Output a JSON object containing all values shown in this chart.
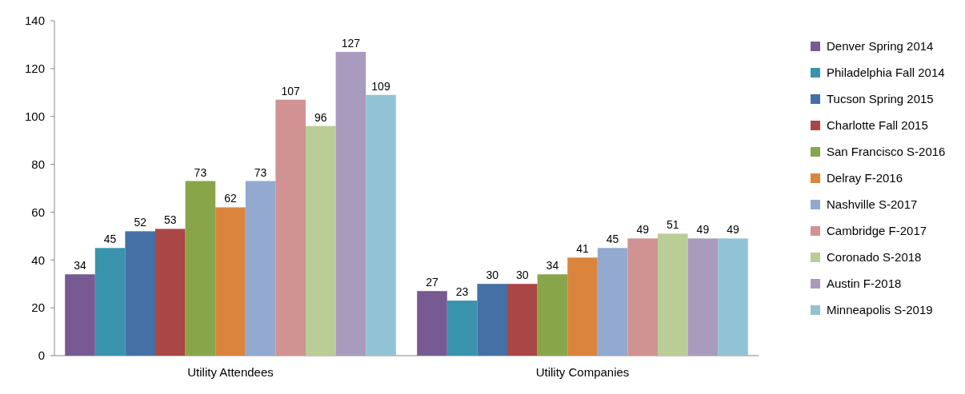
{
  "chart_data": {
    "type": "bar",
    "categories": [
      "Utility Attendees",
      "Utility Companies"
    ],
    "ylim": [
      0,
      140
    ],
    "yticks": [
      0,
      20,
      40,
      60,
      80,
      100,
      120,
      140
    ],
    "data_labels": true,
    "legend": "right",
    "grid": false,
    "series": [
      {
        "name": "Denver Spring 2014",
        "color": "#775a92",
        "values": [
          34,
          27
        ]
      },
      {
        "name": "Philadelphia Fall 2014",
        "color": "#3a93ad",
        "values": [
          45,
          23
        ]
      },
      {
        "name": "Tucson Spring 2015",
        "color": "#4470a6",
        "values": [
          52,
          30
        ]
      },
      {
        "name": "Charlotte Fall 2015",
        "color": "#aa4644",
        "values": [
          53,
          30
        ]
      },
      {
        "name": "San Francisco S-2016",
        "color": "#88a54a",
        "values": [
          73,
          34
        ]
      },
      {
        "name": "Delray F-2016",
        "color": "#db843d",
        "values": [
          62,
          41
        ]
      },
      {
        "name": "Nashville S-2017",
        "color": "#93a9cf",
        "values": [
          73,
          45
        ]
      },
      {
        "name": "Cambridge F-2017",
        "color": "#d09392",
        "values": [
          107,
          49
        ]
      },
      {
        "name": "Coronado S-2018",
        "color": "#bacd96",
        "values": [
          96,
          51
        ]
      },
      {
        "name": "Austin F-2018",
        "color": "#a99bbd",
        "values": [
          127,
          49
        ]
      },
      {
        "name": "Minneapolis S-2019",
        "color": "#92c3d5",
        "values": [
          109,
          49
        ]
      }
    ]
  }
}
